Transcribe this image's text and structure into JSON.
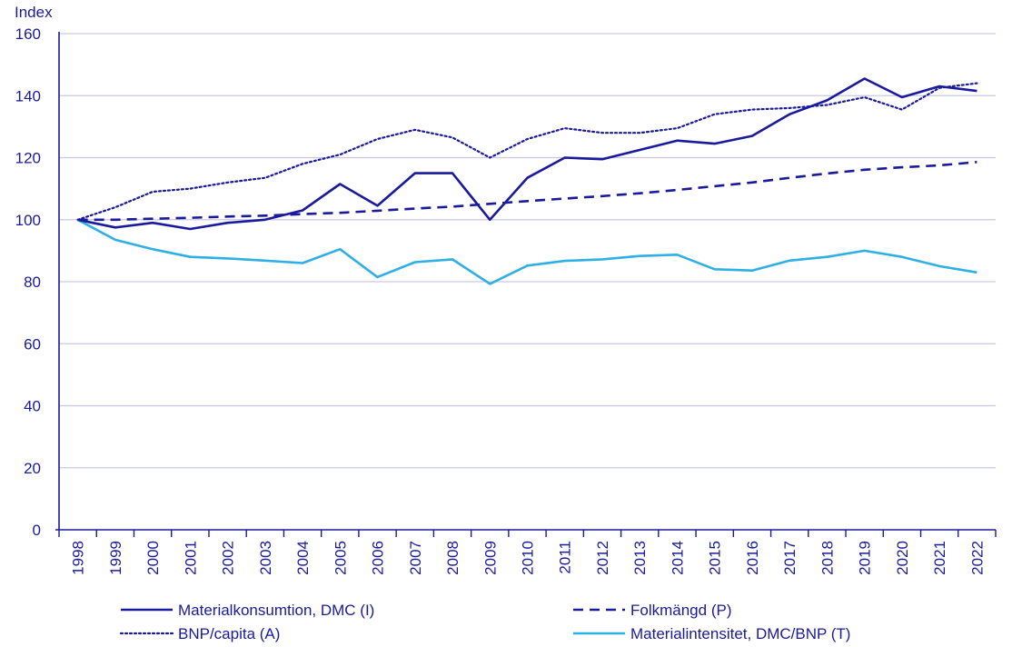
{
  "chart_data": {
    "type": "line",
    "title": "",
    "xlabel": "",
    "ylabel": "Index",
    "ylim": [
      0,
      160
    ],
    "yticks": [
      0,
      20,
      40,
      60,
      80,
      100,
      120,
      140,
      160
    ],
    "grid": true,
    "categories": [
      "1998",
      "1999",
      "2000",
      "2001",
      "2002",
      "2003",
      "2004",
      "2005",
      "2006",
      "2007",
      "2008",
      "2009",
      "2010",
      "2011",
      "2012",
      "2013",
      "2014",
      "2015",
      "2016",
      "2017",
      "2018",
      "2019",
      "2020",
      "2021",
      "2022"
    ],
    "series": [
      {
        "name": "Materialkonsumtion, DMC (I)",
        "style": "solid",
        "color": "#1a1a9c",
        "values": [
          100,
          97.5,
          99,
          97,
          99,
          100,
          103,
          111.5,
          104.5,
          115,
          115,
          100,
          113.5,
          120,
          119.5,
          122.5,
          125.5,
          124.5,
          127,
          134,
          138.5,
          145.5,
          139.5,
          143,
          141.5
        ]
      },
      {
        "name": "Folkmängd (P)",
        "style": "dashed",
        "color": "#1a1a9c",
        "values": [
          100,
          100,
          100.3,
          100.6,
          101,
          101.3,
          101.8,
          102.2,
          102.9,
          103.6,
          104.2,
          105.1,
          106,
          106.8,
          107.6,
          108.5,
          109.6,
          110.8,
          112,
          113.5,
          114.9,
          116.1,
          116.9,
          117.5,
          118.6
        ]
      },
      {
        "name": "BNP/capita (A)",
        "style": "dotted",
        "color": "#1a1a9c",
        "values": [
          100,
          104,
          109,
          110,
          112,
          113.5,
          118,
          121,
          126,
          129,
          126.5,
          120,
          126,
          129.5,
          128,
          128,
          129.5,
          134,
          135.5,
          136,
          137,
          139.5,
          135.5,
          142.5,
          144
        ]
      },
      {
        "name": "Materialintensitet, DMC/BNP (T)",
        "style": "solid",
        "color": "#2eb0e6",
        "values": [
          100,
          93.5,
          90.5,
          88,
          87.5,
          86.8,
          86,
          90.5,
          81.5,
          86.3,
          87.2,
          79.3,
          85.2,
          86.7,
          87.2,
          88.3,
          88.7,
          84,
          83.6,
          86.8,
          88,
          90,
          88,
          85,
          83
        ]
      }
    ],
    "legend": {
      "placement": "bottom",
      "items": [
        "Materialkonsumtion, DMC (I)",
        "Folkmängd (P)",
        "BNP/capita (A)",
        "Materialintensitet, DMC/BNP (T)"
      ]
    }
  }
}
